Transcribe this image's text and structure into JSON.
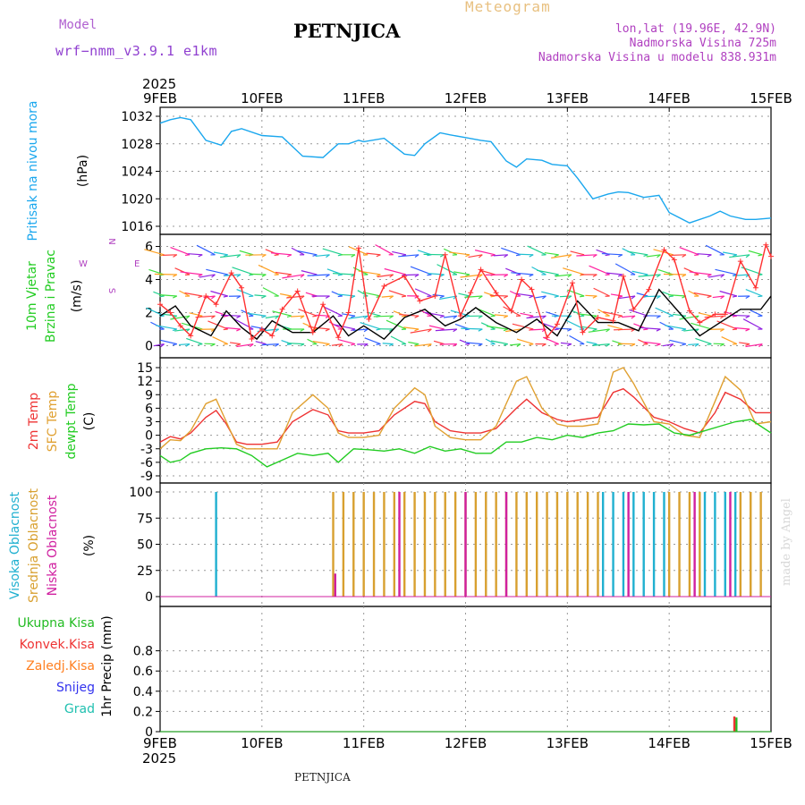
{
  "header": {
    "model_label": "Model",
    "model_name": "wrf−nmm_v3.9.1  e1km",
    "station": "PETNJICA",
    "product": "Meteogram",
    "coords": "lon,lat (19.96E, 42.9N)",
    "altitude": "Nadmorska Visina 725m",
    "model_altitude": "Nadmorska Visina u modelu 838.931m",
    "footer_station": "PETNJICA",
    "credit": "made by Angel"
  },
  "colors": {
    "pressure": "#1aa7ee",
    "wind_speed": "#000000",
    "wind_gust": "#ff3030",
    "temp_2m": "#ee3333",
    "temp_sfc": "#e0a030",
    "dewpoint": "#22cc22",
    "cloud_high": "#20b0d0",
    "cloud_mid": "#d8a030",
    "cloud_low": "#d020a0",
    "precip_total": "#22bb22",
    "precip_conv": "#ee3333",
    "freezing": "#ff7f20",
    "snow": "#3333ee",
    "hail": "#20c0b0",
    "axis": "#000000",
    "grid": "#999999"
  },
  "time_axis": {
    "year": "2025",
    "ticks": [
      "9FEB",
      "10FEB",
      "11FEB",
      "12FEB",
      "13FEB",
      "14FEB",
      "15FEB"
    ]
  },
  "chart_data": [
    {
      "type": "line",
      "panel": "pressure",
      "ylabel": [
        "Pritisak na nivou mora",
        "(hPa)"
      ],
      "ylim": [
        1016,
        1032
      ],
      "yticks": [
        1016,
        1020,
        1024,
        1028,
        1032
      ],
      "grid": true,
      "x_unit": "days from 9FEB 00UTC",
      "series": [
        {
          "color_key": "pressure",
          "x": [
            0,
            0.1,
            0.2,
            0.3,
            0.45,
            0.6,
            0.7,
            0.8,
            1.0,
            1.2,
            1.4,
            1.6,
            1.75,
            1.85,
            1.95,
            2.0,
            2.2,
            2.4,
            2.5,
            2.6,
            2.75,
            2.85,
            3.0,
            3.15,
            3.25,
            3.4,
            3.5,
            3.6,
            3.75,
            3.85,
            4.0,
            4.1,
            4.25,
            4.4,
            4.5,
            4.6,
            4.75,
            4.9,
            5.0,
            5.2,
            5.4,
            5.5,
            5.6,
            5.75,
            5.85,
            6.0
          ],
          "y": [
            1031,
            1031.5,
            1031.8,
            1031.5,
            1028.5,
            1027.8,
            1029.8,
            1030.2,
            1029.2,
            1029.0,
            1026.2,
            1026.0,
            1028.0,
            1028.0,
            1028.5,
            1028.3,
            1028.8,
            1026.5,
            1026.3,
            1028.0,
            1029.6,
            1029.3,
            1028.9,
            1028.5,
            1028.3,
            1025.5,
            1024.6,
            1025.8,
            1025.6,
            1025.0,
            1024.8,
            1023.0,
            1020.0,
            1020.7,
            1021.0,
            1020.9,
            1020.2,
            1020.5,
            1018.0,
            1016.5,
            1017.5,
            1018.2,
            1017.5,
            1017.0,
            1017.0,
            1017.2
          ]
        }
      ]
    },
    {
      "type": "line",
      "panel": "wind",
      "ylabel": [
        "10m Vjetar",
        "Brzina i Pravac",
        "(m/s)"
      ],
      "compass": [
        "N",
        "W",
        "E",
        "S"
      ],
      "ylim": [
        -0.3,
        6.3
      ],
      "yticks": [
        0,
        2,
        4,
        6
      ],
      "grid": true,
      "series": [
        {
          "name": "speed",
          "color_key": "wind_speed",
          "x": [
            0,
            0.15,
            0.3,
            0.5,
            0.65,
            0.8,
            0.95,
            1.1,
            1.3,
            1.5,
            1.7,
            1.85,
            2.0,
            2.2,
            2.4,
            2.6,
            2.8,
            2.95,
            3.1,
            3.3,
            3.5,
            3.7,
            3.9,
            4.1,
            4.3,
            4.5,
            4.7,
            4.9,
            5.1,
            5.3,
            5.5,
            5.7,
            5.9,
            6.0
          ],
          "y": [
            1.8,
            2.4,
            1.2,
            0.6,
            2.1,
            1.1,
            0.4,
            1.5,
            0.8,
            0.8,
            1.8,
            0.6,
            1.2,
            0.4,
            1.7,
            2.2,
            1.2,
            1.6,
            2.3,
            1.4,
            0.8,
            1.6,
            0.6,
            2.7,
            1.4,
            1.4,
            0.9,
            3.4,
            2.0,
            0.6,
            1.4,
            2.2,
            2.2,
            3.0
          ]
        },
        {
          "name": "gust",
          "color_key": "wind_gust",
          "x": [
            0,
            0.1,
            0.2,
            0.3,
            0.45,
            0.55,
            0.7,
            0.8,
            0.9,
            1.0,
            1.1,
            1.2,
            1.35,
            1.5,
            1.6,
            1.75,
            1.85,
            1.95,
            2.05,
            2.2,
            2.4,
            2.55,
            2.7,
            2.8,
            2.95,
            3.05,
            3.15,
            3.3,
            3.45,
            3.55,
            3.65,
            3.8,
            3.9,
            4.05,
            4.15,
            4.3,
            4.45,
            4.55,
            4.65,
            4.8,
            4.95,
            5.05,
            5.2,
            5.3,
            5.45,
            5.55,
            5.7,
            5.85,
            5.95,
            6.0
          ],
          "y": [
            2.5,
            2.0,
            1.2,
            0.6,
            3.0,
            2.5,
            4.4,
            3.5,
            0.4,
            1.0,
            0.6,
            2.2,
            3.3,
            0.8,
            2.5,
            0.5,
            2.0,
            5.9,
            1.6,
            3.6,
            4.2,
            2.7,
            3.0,
            5.5,
            1.8,
            3.2,
            4.6,
            3.2,
            2.1,
            4.0,
            3.4,
            0.5,
            1.3,
            3.8,
            0.8,
            1.7,
            1.5,
            4.2,
            2.2,
            3.4,
            5.8,
            5.2,
            2.1,
            1.4,
            1.9,
            1.9,
            5.1,
            3.5,
            6.1,
            5.4
          ]
        }
      ]
    },
    {
      "type": "line",
      "panel": "temperature",
      "ylabel": [
        "2m Temp",
        "SFC Temp",
        "dewpt Temp",
        "(C)"
      ],
      "ylim": [
        -9,
        15
      ],
      "yticks": [
        -9,
        -6,
        -3,
        0,
        3,
        6,
        9,
        12,
        15
      ],
      "grid": true,
      "series": [
        {
          "name": "2m",
          "color_key": "temp_2m",
          "x": [
            0,
            0.1,
            0.2,
            0.3,
            0.45,
            0.55,
            0.65,
            0.75,
            0.85,
            1.0,
            1.15,
            1.3,
            1.5,
            1.65,
            1.75,
            1.85,
            2.0,
            2.15,
            2.3,
            2.5,
            2.6,
            2.7,
            2.85,
            3.0,
            3.15,
            3.3,
            3.5,
            3.6,
            3.75,
            3.9,
            4.0,
            4.15,
            4.3,
            4.45,
            4.55,
            4.65,
            4.85,
            5.0,
            5.15,
            5.3,
            5.45,
            5.55,
            5.7,
            5.85,
            6.0
          ],
          "y": [
            -1.5,
            -0.3,
            -0.8,
            0.5,
            4.0,
            5.5,
            2.5,
            -1.5,
            -2.0,
            -2.0,
            -1.5,
            3.0,
            5.7,
            4.5,
            1.0,
            0.5,
            0.5,
            1.0,
            4.5,
            7.5,
            7.0,
            3.0,
            1.0,
            0.5,
            0.5,
            1.5,
            6.0,
            8.0,
            5.0,
            3.5,
            3.0,
            3.5,
            4.0,
            9.5,
            10.3,
            8.5,
            4.0,
            3.0,
            1.5,
            0.5,
            5.0,
            9.5,
            8.0,
            5.0,
            5.0
          ]
        },
        {
          "name": "sfc",
          "color_key": "temp_sfc",
          "x": [
            0,
            0.1,
            0.2,
            0.3,
            0.45,
            0.55,
            0.65,
            0.75,
            0.85,
            1.0,
            1.15,
            1.3,
            1.5,
            1.65,
            1.75,
            1.85,
            2.0,
            2.15,
            2.3,
            2.5,
            2.6,
            2.7,
            2.85,
            3.0,
            3.15,
            3.3,
            3.5,
            3.6,
            3.75,
            3.9,
            4.0,
            4.15,
            4.3,
            4.45,
            4.55,
            4.65,
            4.85,
            5.0,
            5.15,
            5.3,
            5.45,
            5.55,
            5.7,
            5.85,
            6.0
          ],
          "y": [
            -3.0,
            -1.0,
            -1.2,
            1.0,
            7.0,
            8.0,
            3.0,
            -2.0,
            -3.0,
            -3.0,
            -3.0,
            5.0,
            9.0,
            6.0,
            0.5,
            -0.5,
            -0.5,
            0.0,
            6.0,
            10.5,
            9.0,
            2.0,
            -0.5,
            -1.0,
            -1.0,
            2.0,
            12.0,
            13.0,
            6.0,
            2.5,
            2.0,
            2.0,
            2.5,
            14.0,
            15.0,
            11.5,
            3.0,
            2.5,
            0.0,
            -0.5,
            7.5,
            13.0,
            10.0,
            2.5,
            3.0
          ]
        },
        {
          "name": "dewpoint",
          "color_key": "dewpoint",
          "x": [
            0,
            0.1,
            0.2,
            0.3,
            0.45,
            0.6,
            0.75,
            0.9,
            1.05,
            1.2,
            1.35,
            1.5,
            1.65,
            1.75,
            1.9,
            2.05,
            2.2,
            2.35,
            2.5,
            2.65,
            2.8,
            2.95,
            3.1,
            3.25,
            3.4,
            3.55,
            3.7,
            3.85,
            4.0,
            4.15,
            4.3,
            4.45,
            4.6,
            4.75,
            4.9,
            5.05,
            5.2,
            5.35,
            5.5,
            5.65,
            5.8,
            6.0
          ],
          "y": [
            -4.5,
            -6.0,
            -5.5,
            -4.0,
            -3.0,
            -2.8,
            -3.0,
            -4.5,
            -7.0,
            -5.5,
            -4.0,
            -4.5,
            -4.0,
            -6.0,
            -3.0,
            -3.2,
            -3.5,
            -3.0,
            -4.0,
            -2.5,
            -3.5,
            -3.0,
            -4.0,
            -4.0,
            -1.5,
            -1.5,
            -0.5,
            -1.0,
            0.0,
            -0.5,
            0.5,
            1.0,
            2.5,
            2.3,
            2.5,
            0.5,
            0.0,
            1.0,
            2.0,
            3.0,
            3.5,
            0.5
          ]
        }
      ]
    },
    {
      "type": "bar",
      "panel": "clouds",
      "ylabel": [
        "Visoka Oblacnost",
        "Srednja Oblacnost",
        "Niska Oblacnost",
        "(%)"
      ],
      "ylim": [
        0,
        100
      ],
      "yticks": [
        0,
        25,
        50,
        75,
        100
      ],
      "grid": true,
      "series": [
        {
          "name": "high",
          "color_key": "cloud_high",
          "x": [
            0.55,
            4.35,
            4.45,
            4.55,
            4.65,
            4.75,
            4.85,
            4.95,
            5.35,
            5.45,
            5.55,
            5.65
          ],
          "values": [
            100,
            100,
            100,
            100,
            100,
            100,
            100,
            100,
            100,
            100,
            100,
            100
          ]
        },
        {
          "name": "mid",
          "color_key": "cloud_mid",
          "x": [
            1.7,
            1.8,
            1.9,
            2.0,
            2.1,
            2.2,
            2.3,
            2.4,
            2.5,
            2.6,
            2.7,
            2.8,
            2.9,
            3.0,
            3.1,
            3.2,
            3.3,
            3.4,
            3.5,
            3.6,
            3.7,
            3.8,
            3.9,
            4.0,
            4.1,
            4.2,
            4.3,
            5.0,
            5.1,
            5.2,
            5.3,
            5.7,
            5.8,
            5.9
          ],
          "values": [
            100,
            100,
            100,
            100,
            100,
            100,
            100,
            100,
            100,
            100,
            100,
            100,
            100,
            100,
            100,
            100,
            100,
            100,
            100,
            100,
            100,
            100,
            100,
            100,
            100,
            100,
            100,
            100,
            100,
            100,
            100,
            100,
            100,
            100
          ]
        },
        {
          "name": "low",
          "color_key": "cloud_low",
          "x": [
            1.72,
            2.35,
            3.0,
            3.4,
            4.6,
            5.25,
            5.6
          ],
          "values": [
            22,
            100,
            100,
            100,
            100,
            100,
            100
          ]
        }
      ]
    },
    {
      "type": "bar",
      "panel": "precip",
      "ylabel": [
        "1hr Precip (mm)"
      ],
      "legend": [
        "Ukupna Kisa",
        "Konvek.Kisa",
        "Zaledj.Kisa",
        "Snijeg",
        "Grad"
      ],
      "ylim": [
        0,
        1.0
      ],
      "yticks": [
        0,
        0.2,
        0.4,
        0.6,
        0.8
      ],
      "grid": true,
      "series": [
        {
          "name": "Ukupna Kisa",
          "color_key": "precip_total",
          "x": [
            5.66
          ],
          "values": [
            0.14
          ]
        },
        {
          "name": "Konvek.Kisa",
          "color_key": "precip_conv",
          "x": [
            5.64
          ],
          "values": [
            0.15
          ]
        }
      ]
    }
  ]
}
